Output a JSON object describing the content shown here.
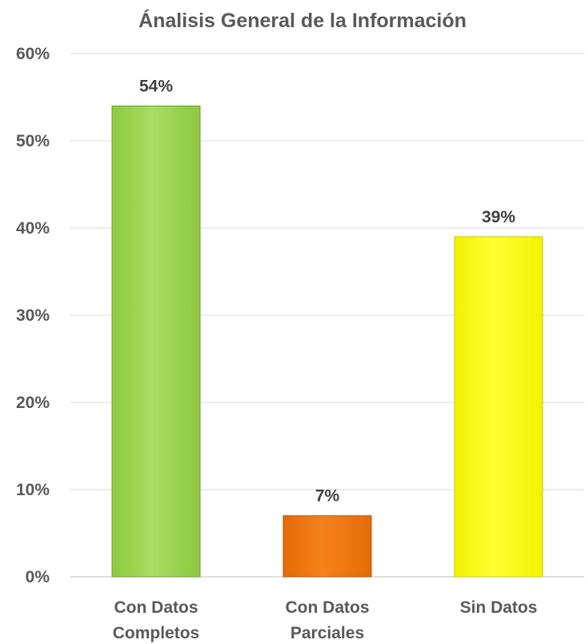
{
  "chart_data": {
    "type": "bar",
    "title": "Ánalisis General de la Información",
    "xlabel": "",
    "ylabel": "",
    "categories": [
      [
        "Con Datos",
        "Completos"
      ],
      [
        "Con Datos",
        "Parciales"
      ],
      [
        "Sin Datos"
      ]
    ],
    "values": [
      54,
      7,
      39
    ],
    "data_labels": [
      "54%",
      "7%",
      "39%"
    ],
    "ylim": [
      0,
      60
    ],
    "y_ticks": [
      0,
      10,
      20,
      30,
      40,
      50,
      60
    ],
    "y_tick_labels": [
      "0%",
      "10%",
      "20%",
      "30%",
      "40%",
      "50%",
      "60%"
    ],
    "grid": true,
    "legend": "none",
    "bar_colors": [
      {
        "top": "#a6de62",
        "bottom": "#8cc940",
        "stroke": "#6fa12c"
      },
      {
        "top": "#f5821b",
        "bottom": "#e56a05",
        "stroke": "#b85204"
      },
      {
        "top": "#ffff33",
        "bottom": "#f2f200",
        "stroke": "#c9c900"
      }
    ]
  }
}
